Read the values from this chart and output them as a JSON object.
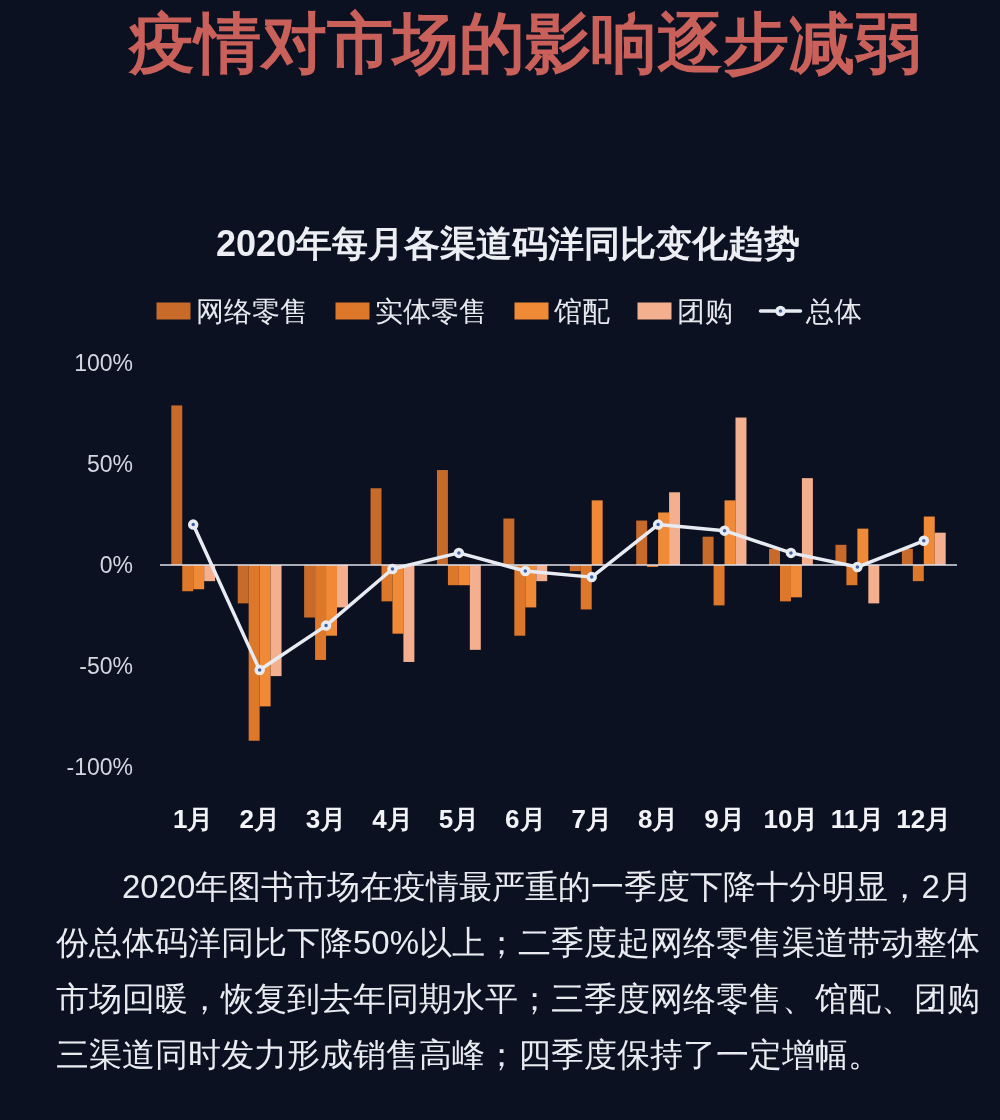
{
  "chart_data": {
    "type": "bar",
    "title": "疫情对市场的影响逐步减弱",
    "subtitle": "2020年每月各渠道码洋同比变化趋势",
    "categories": [
      "1月",
      "2月",
      "3月",
      "4月",
      "5月",
      "6月",
      "7月",
      "8月",
      "9月",
      "10月",
      "11月",
      "12月"
    ],
    "series": [
      {
        "name": "网络零售",
        "color": "#c86a2a",
        "values": [
          79,
          -19,
          -26,
          38,
          47,
          23,
          -3,
          22,
          14,
          8,
          10,
          8
        ]
      },
      {
        "name": "实体零售",
        "color": "#dd782b",
        "values": [
          -13,
          -87,
          -47,
          -18,
          -10,
          -35,
          -22,
          -1,
          -20,
          -18,
          -10,
          -8
        ]
      },
      {
        "name": "馆配",
        "color": "#f08a36",
        "values": [
          -12,
          -70,
          -35,
          -34,
          -10,
          -21,
          32,
          26,
          32,
          -16,
          18,
          24
        ]
      },
      {
        "name": "团购",
        "color": "#f4b08e",
        "values": [
          -8,
          -55,
          -21,
          -48,
          -42,
          -8,
          null,
          36,
          73,
          43,
          -19,
          16
        ]
      },
      {
        "name": "总体",
        "type": "line",
        "color": "#e8ebf2",
        "values": [
          20,
          -52,
          -30,
          -2,
          6,
          -3,
          -6,
          20,
          17,
          6,
          -1,
          12
        ]
      }
    ],
    "ylim": [
      -100,
      100
    ],
    "yticks": [
      {
        "value": -100,
        "label": "-100%"
      },
      {
        "value": -50,
        "label": "-50%"
      },
      {
        "value": 0,
        "label": "0%"
      },
      {
        "value": 50,
        "label": "50%"
      },
      {
        "value": 100,
        "label": "100%"
      }
    ],
    "legend": "top",
    "marker": "circle",
    "annotations": [
      "2020年图书市场在疫情最严重的一季度下降十分明显，2月份总体码洋同比下降50%以上；二季度起网络零售渠道带动整体市场回暖，恢复到去年同期水平；三季度网络零售、馆配、团购三渠道同时发力形成销售高峰；四季度保持了一定增幅。"
    ]
  }
}
